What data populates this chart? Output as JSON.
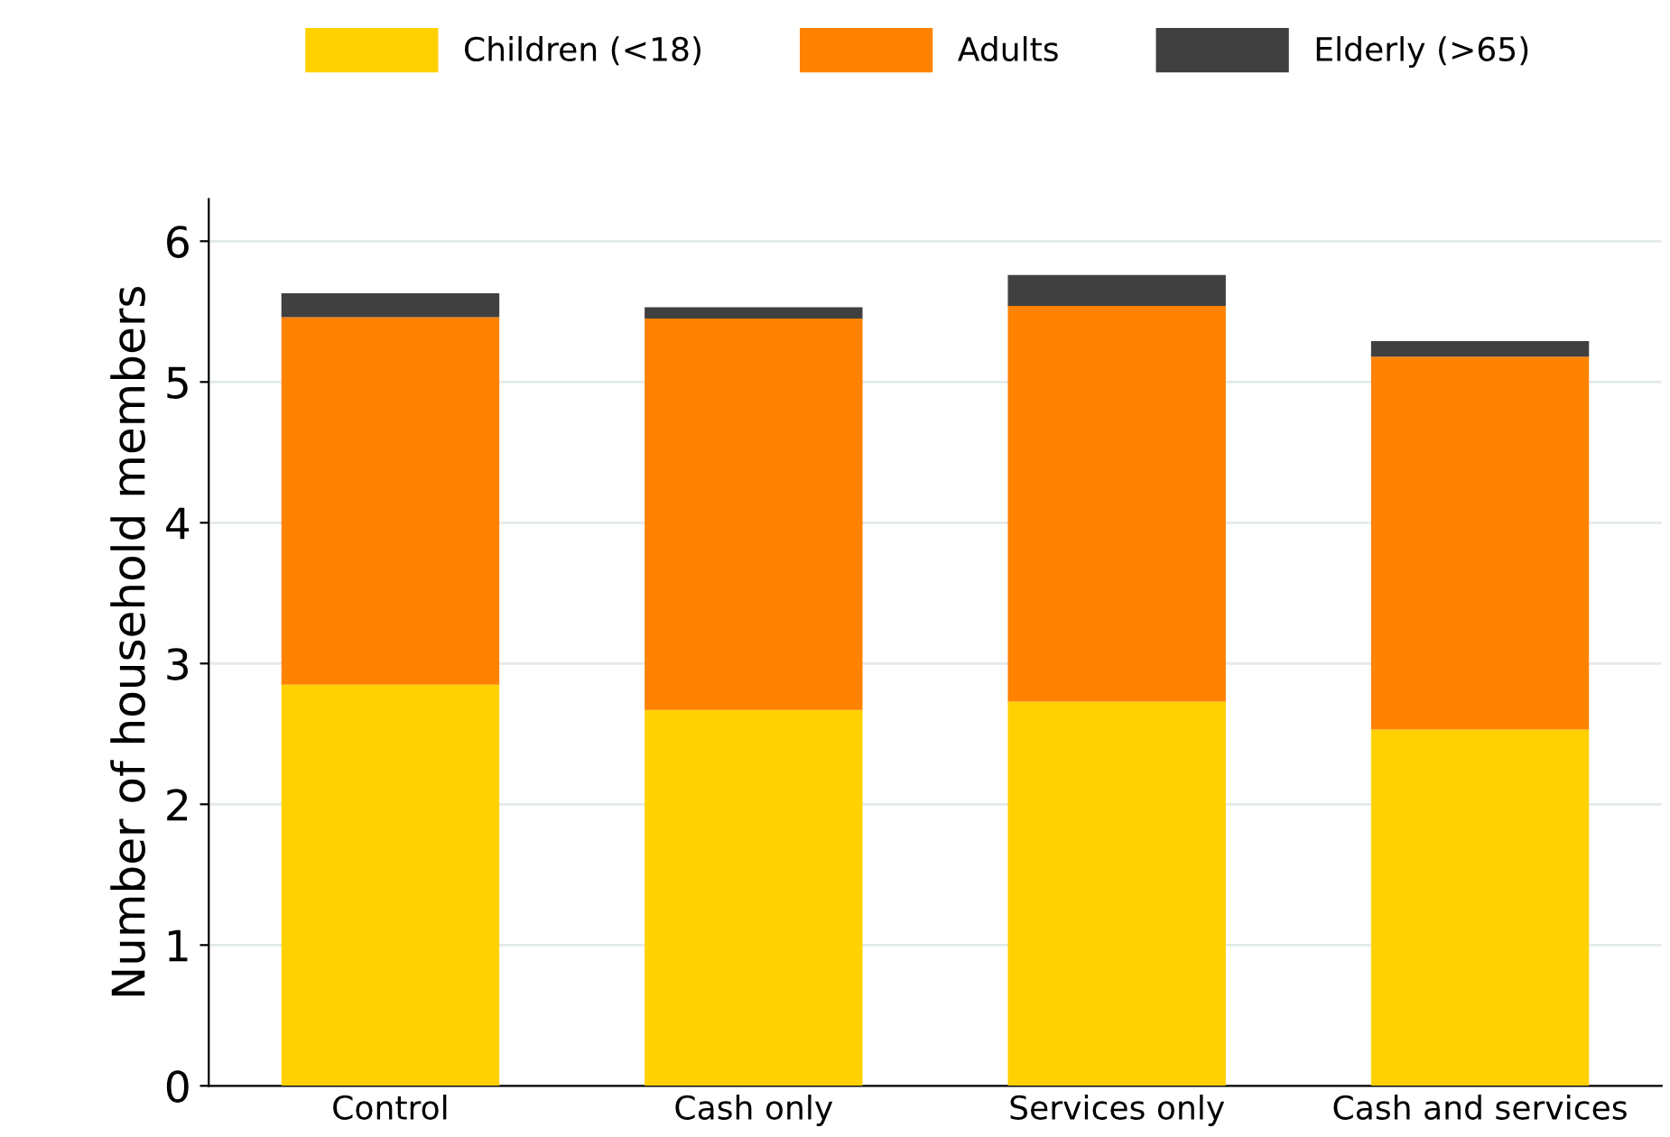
{
  "chart_data": {
    "type": "bar",
    "stacked": true,
    "ylabel": "Number of household members",
    "categories": [
      "Control",
      "Cash only",
      "Services only",
      "Cash and services"
    ],
    "series": [
      {
        "name": "Children (<18)",
        "color": "#ffd100",
        "values": [
          2.85,
          2.67,
          2.73,
          2.53
        ]
      },
      {
        "name": "Adults",
        "color": "#ff8200",
        "values": [
          2.61,
          2.78,
          2.81,
          2.65
        ]
      },
      {
        "name": "Elderly (>65)",
        "color": "#404040",
        "values": [
          0.17,
          0.08,
          0.22,
          0.11
        ]
      }
    ],
    "ylim": [
      0,
      6.3
    ],
    "yticks": [
      0,
      1,
      2,
      3,
      4,
      5,
      6
    ],
    "grid": "y",
    "legend": "top"
  }
}
